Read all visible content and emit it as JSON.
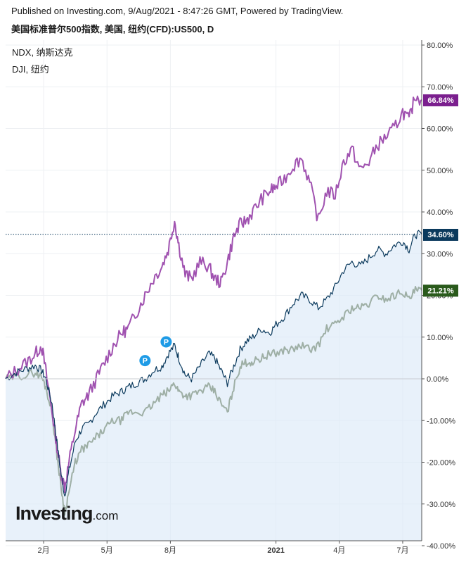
{
  "header": {
    "published": "Published on Investing.com, 9/Aug/2021 - 8:47:26 GMT, Powered by TradingView.",
    "instrument": "美国标准普尔500指数, 美国, 纽约(CFD):US500, D"
  },
  "legend": {
    "items": [
      "NDX, 纳斯达克",
      "DJI, 纽约"
    ]
  },
  "logo": {
    "brand": "Investing",
    "suffix": ".com"
  },
  "colors": {
    "main": "#0b3a5d",
    "fill": "#dceaf8",
    "ndx": "#a052b0",
    "dji": "#9eafa5",
    "ndx_badge": "#7b1f8e",
    "main_badge": "#0b3a5d",
    "dji_badge": "#2a5a1c",
    "pin": "#1e9be6"
  },
  "chart_data": {
    "type": "line",
    "y_unit": "%",
    "ylim": [
      -40,
      80
    ],
    "y_ticks": [
      "80.00%",
      "70.00%",
      "60.00%",
      "50.00%",
      "40.00%",
      "30.00%",
      "20.00%",
      "10.00%",
      "0.00%",
      "-10.00%",
      "-20.00%",
      "-30.00%",
      "-40.00%"
    ],
    "y_tick_values": [
      80,
      70,
      60,
      50,
      40,
      30,
      20,
      10,
      0,
      -10,
      -20,
      -30,
      -40
    ],
    "x_ticks": [
      {
        "label": "2月",
        "t": 1.0
      },
      {
        "label": "5月",
        "t": 4.0
      },
      {
        "label": "8月",
        "t": 7.0
      },
      {
        "label": "2021",
        "t": 12.0
      },
      {
        "label": "4月",
        "t": 15.0
      },
      {
        "label": "7月",
        "t": 18.0
      }
    ],
    "xlim": [
      -0.8,
      18.9
    ],
    "series": [
      {
        "key": "main",
        "last_label": "34.60%",
        "last_value": 34.6,
        "points": [
          [
            -0.8,
            0
          ],
          [
            -0.3,
            1.5
          ],
          [
            0.2,
            2.5
          ],
          [
            0.6,
            3.2
          ],
          [
            0.9,
            2
          ],
          [
            1.1,
            0
          ],
          [
            1.4,
            -6
          ],
          [
            1.6,
            -14
          ],
          [
            1.8,
            -22
          ],
          [
            2.0,
            -28
          ],
          [
            2.2,
            -22
          ],
          [
            2.5,
            -15
          ],
          [
            2.8,
            -12
          ],
          [
            3.1,
            -11
          ],
          [
            3.5,
            -8
          ],
          [
            3.9,
            -6
          ],
          [
            4.3,
            -4
          ],
          [
            4.7,
            -3
          ],
          [
            5.0,
            -2
          ],
          [
            5.4,
            -1
          ],
          [
            5.8,
            0
          ],
          [
            6.2,
            2
          ],
          [
            6.6,
            3
          ],
          [
            6.9,
            6
          ],
          [
            7.2,
            8
          ],
          [
            7.4,
            5
          ],
          [
            7.7,
            1
          ],
          [
            8.0,
            0
          ],
          [
            8.4,
            3
          ],
          [
            8.8,
            6
          ],
          [
            9.1,
            5
          ],
          [
            9.4,
            2
          ],
          [
            9.7,
            -1
          ],
          [
            10.0,
            3
          ],
          [
            10.3,
            7
          ],
          [
            10.6,
            9
          ],
          [
            10.9,
            10
          ],
          [
            11.3,
            12
          ],
          [
            11.7,
            11
          ],
          [
            12.0,
            13
          ],
          [
            12.4,
            15
          ],
          [
            12.8,
            18
          ],
          [
            13.2,
            20
          ],
          [
            13.6,
            19
          ],
          [
            14.0,
            17
          ],
          [
            14.4,
            19
          ],
          [
            14.8,
            22
          ],
          [
            15.2,
            26
          ],
          [
            15.6,
            28
          ],
          [
            16.0,
            27
          ],
          [
            16.4,
            29
          ],
          [
            16.8,
            31
          ],
          [
            17.2,
            30
          ],
          [
            17.6,
            32
          ],
          [
            18.0,
            33
          ],
          [
            18.3,
            31
          ],
          [
            18.6,
            34.6
          ],
          [
            18.9,
            34.6
          ]
        ]
      },
      {
        "key": "ndx",
        "last_label": "66.84%",
        "last_value": 66.84,
        "points": [
          [
            -0.8,
            0
          ],
          [
            -0.3,
            2
          ],
          [
            0.2,
            4
          ],
          [
            0.6,
            6
          ],
          [
            0.9,
            8
          ],
          [
            1.1,
            2
          ],
          [
            1.4,
            -8
          ],
          [
            1.6,
            -15
          ],
          [
            1.8,
            -22
          ],
          [
            2.0,
            -26
          ],
          [
            2.2,
            -20
          ],
          [
            2.5,
            -12
          ],
          [
            2.8,
            -6
          ],
          [
            3.1,
            -4
          ],
          [
            3.5,
            0
          ],
          [
            3.9,
            4
          ],
          [
            4.3,
            8
          ],
          [
            4.7,
            11
          ],
          [
            5.0,
            12
          ],
          [
            5.4,
            16
          ],
          [
            5.8,
            20
          ],
          [
            6.2,
            24
          ],
          [
            6.6,
            27
          ],
          [
            6.9,
            31
          ],
          [
            7.2,
            38
          ],
          [
            7.4,
            32
          ],
          [
            7.7,
            25
          ],
          [
            8.0,
            24
          ],
          [
            8.4,
            28
          ],
          [
            8.8,
            27
          ],
          [
            9.1,
            24
          ],
          [
            9.4,
            23
          ],
          [
            9.7,
            28
          ],
          [
            10.0,
            34
          ],
          [
            10.3,
            37
          ],
          [
            10.6,
            38
          ],
          [
            10.9,
            40
          ],
          [
            11.3,
            43
          ],
          [
            11.7,
            45
          ],
          [
            12.0,
            46
          ],
          [
            12.4,
            48
          ],
          [
            12.8,
            51
          ],
          [
            13.2,
            53
          ],
          [
            13.6,
            47
          ],
          [
            14.0,
            38
          ],
          [
            14.4,
            45
          ],
          [
            14.8,
            44
          ],
          [
            15.2,
            52
          ],
          [
            15.6,
            55
          ],
          [
            16.0,
            50
          ],
          [
            16.4,
            52
          ],
          [
            16.8,
            56
          ],
          [
            17.2,
            58
          ],
          [
            17.6,
            60
          ],
          [
            18.0,
            64
          ],
          [
            18.3,
            62
          ],
          [
            18.6,
            68
          ],
          [
            18.9,
            66.84
          ]
        ]
      },
      {
        "key": "dji",
        "last_label": "21.21%",
        "last_value": 21.21,
        "points": [
          [
            -0.8,
            0
          ],
          [
            -0.3,
            0.5
          ],
          [
            0.2,
            1
          ],
          [
            0.6,
            1.5
          ],
          [
            0.9,
            0.5
          ],
          [
            1.1,
            -2
          ],
          [
            1.4,
            -8
          ],
          [
            1.6,
            -17
          ],
          [
            1.8,
            -25
          ],
          [
            2.0,
            -32
          ],
          [
            2.2,
            -27
          ],
          [
            2.5,
            -20
          ],
          [
            2.8,
            -17
          ],
          [
            3.1,
            -16
          ],
          [
            3.5,
            -14
          ],
          [
            3.9,
            -12
          ],
          [
            4.3,
            -10
          ],
          [
            4.7,
            -10
          ],
          [
            5.0,
            -8
          ],
          [
            5.4,
            -8
          ],
          [
            5.8,
            -8
          ],
          [
            6.2,
            -6
          ],
          [
            6.6,
            -4
          ],
          [
            6.9,
            -3
          ],
          [
            7.2,
            -1
          ],
          [
            7.4,
            -3
          ],
          [
            7.7,
            -4
          ],
          [
            8.0,
            -4
          ],
          [
            8.4,
            -3
          ],
          [
            8.8,
            -2
          ],
          [
            9.1,
            -3
          ],
          [
            9.4,
            -6
          ],
          [
            9.7,
            -8
          ],
          [
            10.0,
            -2
          ],
          [
            10.3,
            3
          ],
          [
            10.6,
            4
          ],
          [
            10.9,
            4
          ],
          [
            11.3,
            5
          ],
          [
            11.7,
            6
          ],
          [
            12.0,
            6
          ],
          [
            12.4,
            7
          ],
          [
            12.8,
            7
          ],
          [
            13.2,
            8
          ],
          [
            13.6,
            7
          ],
          [
            14.0,
            8
          ],
          [
            14.4,
            12
          ],
          [
            14.8,
            13
          ],
          [
            15.2,
            15
          ],
          [
            15.6,
            17
          ],
          [
            16.0,
            17
          ],
          [
            16.4,
            18
          ],
          [
            16.8,
            20
          ],
          [
            17.2,
            19
          ],
          [
            17.6,
            20
          ],
          [
            18.0,
            21
          ],
          [
            18.3,
            19
          ],
          [
            18.6,
            21.2
          ],
          [
            18.9,
            21.21
          ]
        ]
      }
    ],
    "reference_line": 34.6,
    "zero_line": 0,
    "markers": [
      {
        "label": "P",
        "t": 5.8,
        "value": 2
      },
      {
        "label": "P",
        "t": 6.8,
        "value": 6.5
      }
    ]
  }
}
